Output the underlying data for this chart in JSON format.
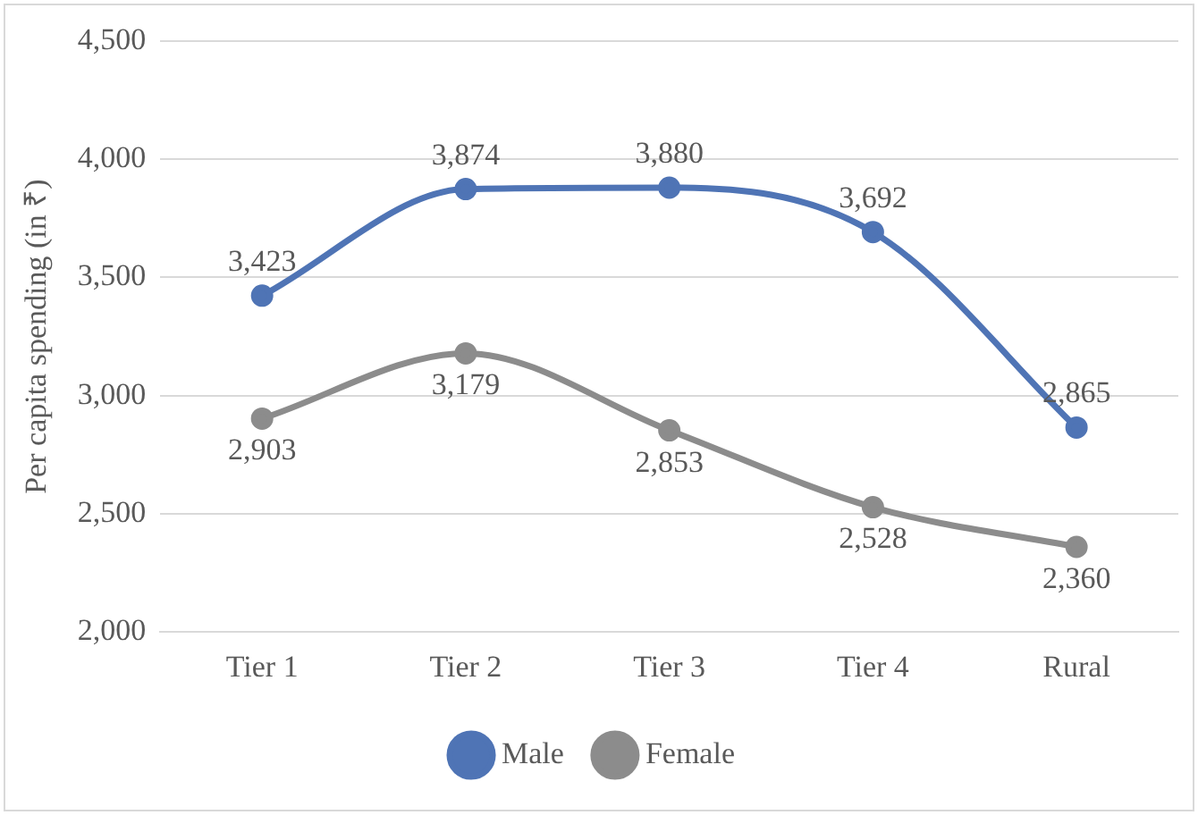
{
  "chart_data": {
    "type": "line",
    "ylabel": "Per capita spending (in ₹)",
    "categories": [
      "Tier 1",
      "Tier 2",
      "Tier 3",
      "Tier 4",
      "Rural"
    ],
    "series": [
      {
        "name": "Male",
        "color": "#4f74b5",
        "values": [
          3423,
          3874,
          3880,
          3692,
          2865
        ],
        "value_labels": [
          "3,423",
          "3,874",
          "3,880",
          "3,692",
          "2,865"
        ]
      },
      {
        "name": "Female",
        "color": "#8c8c8c",
        "values": [
          2903,
          3179,
          2853,
          2528,
          2360
        ],
        "value_labels": [
          "2,903",
          "3,179",
          "2,853",
          "2,528",
          "2,360"
        ]
      }
    ],
    "ylim": [
      2000,
      4500
    ],
    "yticks": [
      {
        "value": 2000,
        "label": "2,000"
      },
      {
        "value": 2500,
        "label": "2,500"
      },
      {
        "value": 3000,
        "label": "3,000"
      },
      {
        "value": 3500,
        "label": "3,500"
      },
      {
        "value": 4000,
        "label": "4,000"
      },
      {
        "value": 4500,
        "label": "4,500"
      }
    ],
    "grid": "y",
    "legend": "bottom",
    "marker": "circle",
    "line_style": "solid"
  }
}
